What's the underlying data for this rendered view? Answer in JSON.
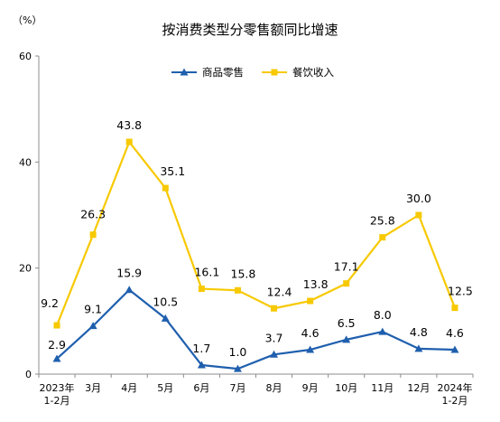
{
  "chart_data": {
    "type": "line",
    "title": "按消费类型分零售额同比增速",
    "unit_label": "（%）",
    "x": [
      [
        "2023年",
        "1-2月"
      ],
      [
        "3月"
      ],
      [
        "4月"
      ],
      [
        "5月"
      ],
      [
        "6月"
      ],
      [
        "7月"
      ],
      [
        "8月"
      ],
      [
        "9月"
      ],
      [
        "10月"
      ],
      [
        "11月"
      ],
      [
        "12月"
      ],
      [
        "2024年",
        "1-2月"
      ]
    ],
    "ylim": [
      0,
      60
    ],
    "yticks": [
      0,
      20,
      40,
      60
    ],
    "grid": false,
    "legend_position": "top-center",
    "series": [
      {
        "name": "商品零售",
        "color": "#1f5fae",
        "marker": "triangle",
        "values": [
          2.9,
          9.1,
          15.9,
          10.5,
          1.7,
          1.0,
          3.7,
          4.6,
          6.5,
          8.0,
          4.8,
          4.6
        ],
        "labels": [
          "2.9",
          "9.1",
          "15.9",
          "10.5",
          "1.7",
          "1.0",
          "3.7",
          "4.6",
          "6.5",
          "8.0",
          "4.8",
          "4.6"
        ]
      },
      {
        "name": "餐饮收入",
        "color": "#f7c900",
        "marker": "square",
        "values": [
          9.2,
          26.3,
          43.8,
          35.1,
          16.1,
          15.8,
          12.4,
          13.8,
          17.1,
          25.8,
          30.0,
          12.5
        ],
        "labels": [
          "9.2",
          "26.3",
          "43.8",
          "35.1",
          "16.1",
          "15.8",
          "12.4",
          "13.8",
          "17.1",
          "25.8",
          "30.0",
          "12.5"
        ]
      }
    ]
  }
}
